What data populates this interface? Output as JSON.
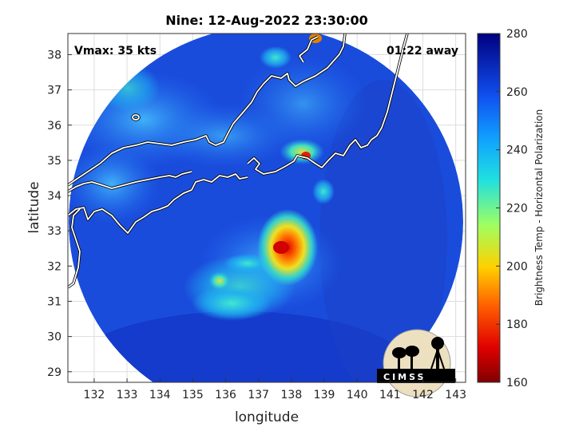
{
  "title": "Nine: 12-Aug-2022 23:30:00",
  "vmax_label": "Vmax: 35 kts",
  "away_label": "01:22 away",
  "xlabel": "longitude",
  "ylabel": "latitude",
  "x_ticks": [
    132,
    133,
    134,
    135,
    136,
    137,
    138,
    139,
    140,
    141,
    142,
    143
  ],
  "y_ticks": [
    29,
    30,
    31,
    32,
    33,
    34,
    35,
    36,
    37,
    38
  ],
  "xlim": [
    131.2,
    143.3
  ],
  "ylim": [
    28.7,
    38.6
  ],
  "colorbar": {
    "label": "Brightness Temp - Horizontal Polarization",
    "ticks": [
      160,
      180,
      200,
      220,
      240,
      260,
      280
    ],
    "range": [
      160,
      280
    ]
  },
  "logo_text": "CIMSS",
  "colors": {
    "swath_background": "#1a4cdc",
    "coastline": "#ffffff",
    "coastline_outline": "#000000"
  }
}
